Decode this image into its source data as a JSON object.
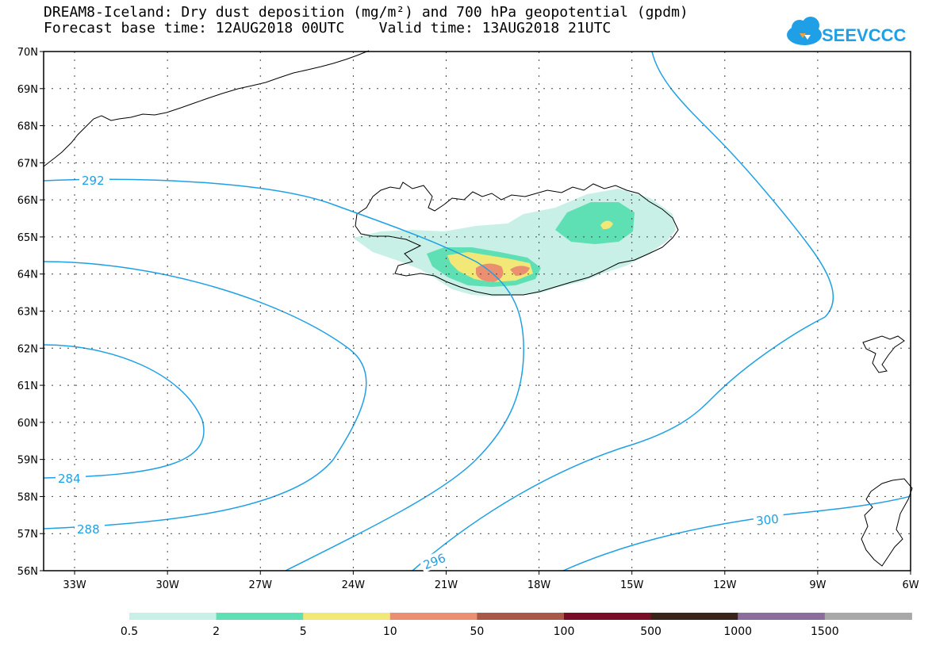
{
  "title_line1": "DREAM8-Iceland: Dry dust deposition (mg/m²) and 700 hPa geopotential (gpdm)",
  "title_line2": "Forecast base time: 12AUG2018 00UTC    Valid time: 13AUG2018 21UTC",
  "logo_text": "SEEVCCC",
  "lat_labels": [
    "70N",
    "69N",
    "68N",
    "67N",
    "66N",
    "65N",
    "64N",
    "63N",
    "62N",
    "61N",
    "60N",
    "59N",
    "58N",
    "57N",
    "56N"
  ],
  "lon_labels": [
    "33W",
    "30W",
    "27W",
    "24W",
    "21W",
    "18W",
    "15W",
    "12W",
    "9W",
    "6W"
  ],
  "contour_labels": [
    "292",
    "284",
    "288",
    "296",
    "300"
  ],
  "colorbar": {
    "labels": [
      "0.5",
      "2",
      "5",
      "10",
      "50",
      "100",
      "500",
      "1000",
      "1500"
    ],
    "colors": [
      "#c8f0e6",
      "#5ee0b4",
      "#f2e878",
      "#ea9070",
      "#a85848",
      "#7a0c28",
      "#3a2418",
      "#8c6c9c",
      "#a8a8a8"
    ]
  },
  "colors": {
    "contour": "#1fa0e6",
    "grid": "#444444",
    "coast": "#000000"
  }
}
